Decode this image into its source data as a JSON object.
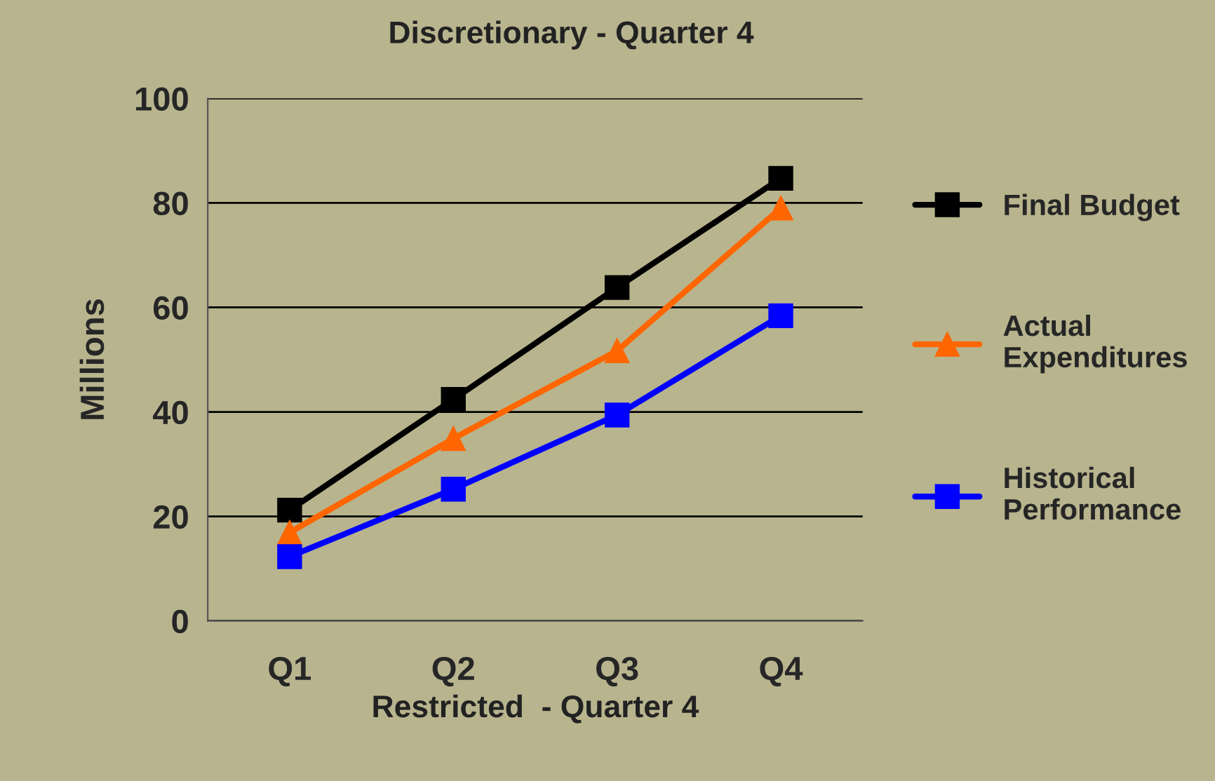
{
  "chart_data": {
    "type": "line",
    "title": "Discretionary - Quarter 4",
    "xlabel": "Restricted  - Quarter 4",
    "ylabel": "Millions",
    "categories": [
      "Q1",
      "Q2",
      "Q3",
      "Q4"
    ],
    "series": [
      {
        "name": "Final Budget",
        "color": "#000000",
        "marker": "square",
        "values": [
          21.2,
          42.4,
          63.8,
          84.7
        ]
      },
      {
        "name": "Actual Expenditures",
        "color": "#ff6600",
        "marker": "triangle",
        "values": [
          16.9,
          34.9,
          51.7,
          79.0
        ]
      },
      {
        "name": "Historical Performance",
        "color": "#0000ff",
        "marker": "square",
        "values": [
          12.3,
          25.2,
          39.4,
          58.4
        ]
      }
    ],
    "ylim": [
      0,
      100
    ],
    "yticks": [
      0,
      20,
      40,
      60,
      80,
      100
    ],
    "grid": "y",
    "legend": "right",
    "line_style": "solid"
  }
}
